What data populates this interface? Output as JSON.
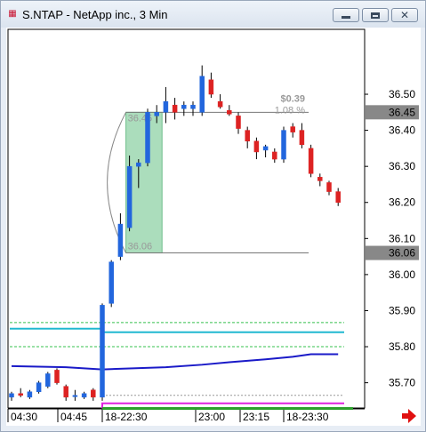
{
  "window": {
    "title": "S.NTAP - NetApp inc., 3 Min",
    "icon": "chart-app-icon"
  },
  "colors": {
    "up": "#2266dd",
    "down": "#dd2222",
    "highlight": "#8fd1a6",
    "dark_blue_line": "#1a1ac8",
    "cyan_line": "#20b8d0",
    "green_dashed": "#34c04c",
    "magenta_line": "#e020e0",
    "price_label_bg": "#888888"
  },
  "chart_data": {
    "type": "candlestick",
    "y_axis": {
      "ticks": [
        "36.50",
        "36.40",
        "36.30",
        "36.20",
        "36.10",
        "36.00",
        "35.90",
        "35.80",
        "35.70"
      ],
      "tick_values": [
        36.5,
        36.4,
        36.3,
        36.2,
        36.1,
        36.0,
        35.9,
        35.8,
        35.7
      ],
      "range": [
        35.63,
        36.68
      ]
    },
    "x_axis": {
      "labels": [
        "04:30",
        "04:45",
        "18-22:30",
        "23:00",
        "23:15",
        "18-23:30"
      ]
    },
    "price_labels": [
      {
        "text": "36.45",
        "value": 36.45
      },
      {
        "text": "36.06",
        "value": 36.06
      }
    ],
    "measurement": {
      "change": "$0.39",
      "percent": "1.08 %",
      "high_label": "36.45",
      "low_label": "36.06",
      "high": 36.45,
      "low": 36.06,
      "start_index": 13,
      "end_index": 16
    },
    "candles": [
      {
        "o": 35.66,
        "h": 35.675,
        "l": 35.65,
        "c": 35.67
      },
      {
        "o": 35.67,
        "h": 35.685,
        "l": 35.66,
        "c": 35.665
      },
      {
        "o": 35.66,
        "h": 35.68,
        "l": 35.655,
        "c": 35.675
      },
      {
        "o": 35.675,
        "h": 35.705,
        "l": 35.67,
        "c": 35.7
      },
      {
        "o": 35.69,
        "h": 35.73,
        "l": 35.685,
        "c": 35.725
      },
      {
        "o": 35.735,
        "h": 35.74,
        "l": 35.695,
        "c": 35.7
      },
      {
        "o": 35.69,
        "h": 35.695,
        "l": 35.65,
        "c": 35.66
      },
      {
        "o": 35.665,
        "h": 35.68,
        "l": 35.65,
        "c": 35.665
      },
      {
        "o": 35.66,
        "h": 35.675,
        "l": 35.655,
        "c": 35.67
      },
      {
        "o": 35.68,
        "h": 35.685,
        "l": 35.65,
        "c": 35.66
      },
      {
        "o": 35.66,
        "h": 35.92,
        "l": 35.65,
        "c": 35.915
      },
      {
        "o": 35.92,
        "h": 36.04,
        "l": 35.91,
        "c": 36.035
      },
      {
        "o": 36.05,
        "h": 36.17,
        "l": 36.04,
        "c": 36.14
      },
      {
        "o": 36.13,
        "h": 36.33,
        "l": 36.12,
        "c": 36.3
      },
      {
        "o": 36.3,
        "h": 36.32,
        "l": 36.24,
        "c": 36.31
      },
      {
        "o": 36.31,
        "h": 36.46,
        "l": 36.3,
        "c": 36.45
      },
      {
        "o": 36.44,
        "h": 36.47,
        "l": 36.42,
        "c": 36.45
      },
      {
        "o": 36.45,
        "h": 36.52,
        "l": 36.42,
        "c": 36.48
      },
      {
        "o": 36.47,
        "h": 36.49,
        "l": 36.43,
        "c": 36.45
      },
      {
        "o": 36.46,
        "h": 36.48,
        "l": 36.44,
        "c": 36.47
      },
      {
        "o": 36.46,
        "h": 36.48,
        "l": 36.44,
        "c": 36.47
      },
      {
        "o": 36.45,
        "h": 36.58,
        "l": 36.44,
        "c": 36.55
      },
      {
        "o": 36.54,
        "h": 36.56,
        "l": 36.49,
        "c": 36.5
      },
      {
        "o": 36.48,
        "h": 36.5,
        "l": 36.46,
        "c": 36.465
      },
      {
        "o": 36.455,
        "h": 36.47,
        "l": 36.44,
        "c": 36.445
      },
      {
        "o": 36.44,
        "h": 36.45,
        "l": 36.39,
        "c": 36.405
      },
      {
        "o": 36.4,
        "h": 36.41,
        "l": 36.35,
        "c": 36.37
      },
      {
        "o": 36.37,
        "h": 36.38,
        "l": 36.32,
        "c": 36.34
      },
      {
        "o": 36.345,
        "h": 36.36,
        "l": 36.325,
        "c": 36.355
      },
      {
        "o": 36.34,
        "h": 36.35,
        "l": 36.31,
        "c": 36.32
      },
      {
        "o": 36.32,
        "h": 36.41,
        "l": 36.31,
        "c": 36.4
      },
      {
        "o": 36.41,
        "h": 36.42,
        "l": 36.38,
        "c": 36.395
      },
      {
        "o": 36.4,
        "h": 36.42,
        "l": 36.35,
        "c": 36.36
      },
      {
        "o": 36.35,
        "h": 36.36,
        "l": 36.27,
        "c": 36.28
      },
      {
        "o": 36.27,
        "h": 36.28,
        "l": 36.245,
        "c": 36.26
      },
      {
        "o": 36.255,
        "h": 36.26,
        "l": 36.22,
        "c": 36.23
      },
      {
        "o": 36.23,
        "h": 36.24,
        "l": 36.19,
        "c": 36.2
      }
    ],
    "lines": [
      {
        "name": "green-dashed-upper",
        "style": "dashed",
        "color": "#34c04c",
        "value": 35.867
      },
      {
        "name": "green-dashed-lower",
        "style": "dashed",
        "color": "#34c04c",
        "value": 35.8
      },
      {
        "name": "cyan-line",
        "style": "solid",
        "color": "#20b8d0",
        "values_start": 35.85,
        "values_end": 35.84
      },
      {
        "name": "dark-blue-line",
        "style": "solid",
        "color": "#1a1ac8",
        "points": [
          [
            0,
            35.746
          ],
          [
            6,
            35.743
          ],
          [
            10,
            35.737
          ],
          [
            17,
            35.743
          ],
          [
            21,
            35.75
          ],
          [
            24,
            35.757
          ],
          [
            28,
            35.765
          ],
          [
            31,
            35.772
          ],
          [
            33,
            35.779
          ],
          [
            36,
            35.779
          ]
        ]
      },
      {
        "name": "gray-dashed-bottom",
        "style": "dashed",
        "color": "#999999",
        "value": 35.665
      },
      {
        "name": "magenta-line",
        "style": "solid",
        "color": "#e020e0",
        "value": 35.643
      }
    ],
    "grid": false
  }
}
